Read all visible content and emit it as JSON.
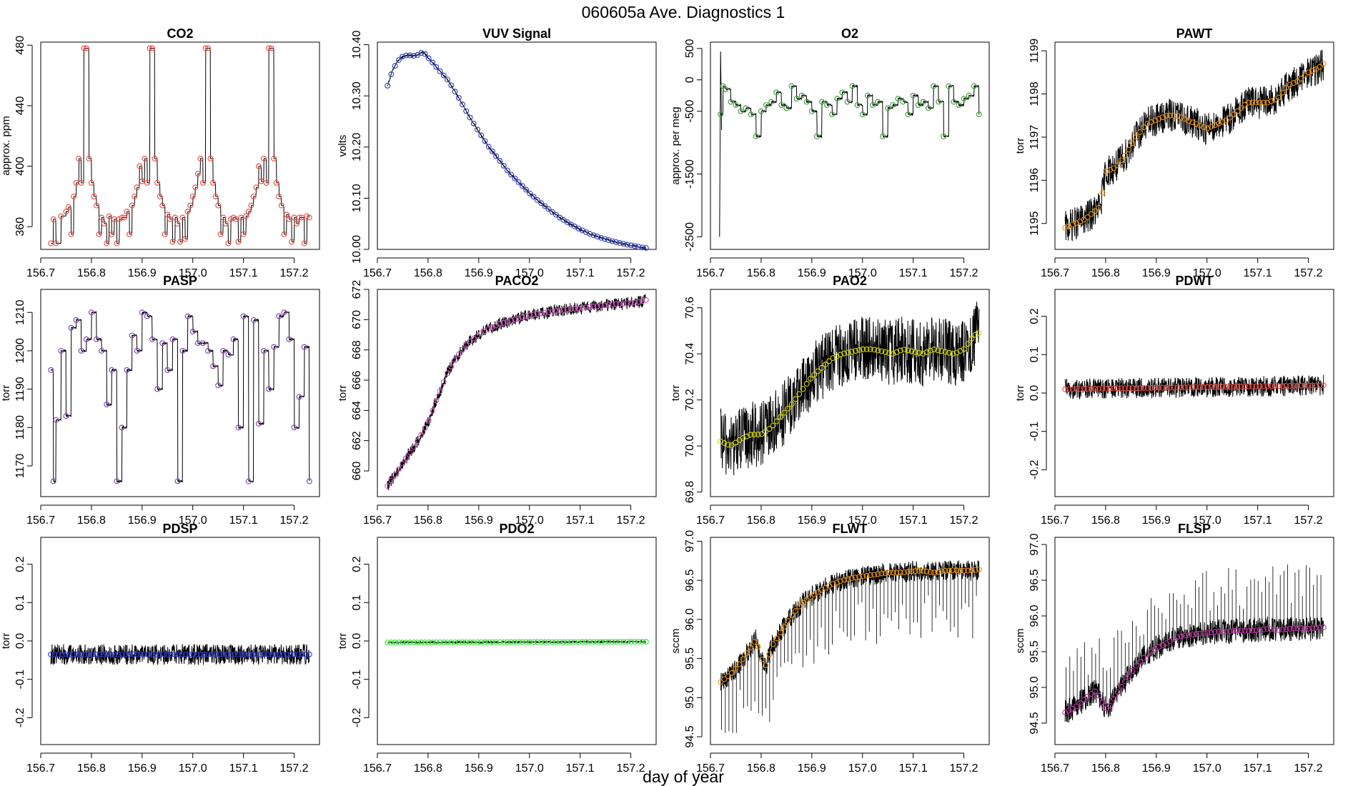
{
  "figure": {
    "title": "060605a   Ave. Diagnostics 1",
    "xlabel": "day of year"
  },
  "chart_data": [
    {
      "type": "line",
      "title": "CO2",
      "ylabel": "approx. ppm",
      "color": "#e8473f",
      "xlim": [
        156.7,
        157.25
      ],
      "ylim": [
        345,
        482
      ],
      "yticks": [
        360,
        400,
        440,
        480
      ],
      "xticks": [
        156.7,
        156.8,
        156.9,
        157.0,
        157.1,
        157.2
      ],
      "x": [
        156.72,
        156.725,
        156.73,
        156.74,
        156.75,
        156.755,
        156.76,
        156.765,
        156.77,
        156.775,
        156.78,
        156.785,
        156.79,
        156.795,
        156.8,
        156.805,
        156.81,
        156.815,
        156.82,
        156.825,
        156.83,
        156.835,
        156.84,
        156.845,
        156.85,
        156.855,
        156.86,
        156.865,
        156.87,
        156.875,
        156.88,
        156.885,
        156.89,
        156.895,
        156.9,
        156.905,
        156.91,
        156.915,
        156.92,
        156.925,
        156.93,
        156.935,
        156.94,
        156.945,
        156.95,
        156.955,
        156.96,
        156.965,
        156.97,
        156.975,
        156.98,
        156.985,
        156.99,
        156.995,
        157.0,
        157.005,
        157.01,
        157.015,
        157.02,
        157.025,
        157.03,
        157.035,
        157.04,
        157.045,
        157.05,
        157.055,
        157.06,
        157.065,
        157.07,
        157.075,
        157.08,
        157.085,
        157.09,
        157.095,
        157.1,
        157.105,
        157.11,
        157.115,
        157.12,
        157.125,
        157.13,
        157.135,
        157.14,
        157.145,
        157.15,
        157.155,
        157.16,
        157.165,
        157.17,
        157.175,
        157.18,
        157.185,
        157.19,
        157.195,
        157.2,
        157.205,
        157.21,
        157.215,
        157.22,
        157.225,
        157.23
      ],
      "values": [
        349,
        365,
        349,
        367,
        370,
        373,
        355,
        380,
        389,
        405,
        389,
        478,
        478,
        405,
        389,
        380,
        374,
        355,
        366,
        362,
        349,
        367,
        355,
        365,
        349,
        365,
        366,
        366,
        370,
        355,
        374,
        380,
        386,
        400,
        390,
        405,
        389,
        478,
        478,
        405,
        389,
        380,
        374,
        355,
        368,
        365,
        350,
        366,
        362,
        350,
        366,
        352,
        370,
        374,
        380,
        386,
        395,
        405,
        389,
        478,
        478,
        405,
        389,
        380,
        374,
        355,
        366,
        362,
        349,
        365,
        366,
        365,
        350,
        366,
        355,
        367,
        370,
        374,
        380,
        386,
        400,
        390,
        405,
        389,
        478,
        478,
        405,
        389,
        380,
        374,
        355,
        368,
        365,
        350,
        366,
        362,
        366,
        366,
        349,
        367,
        366
      ]
    },
    {
      "type": "line",
      "title": "VUV Signal",
      "ylabel": "volts",
      "color": "#2a39c4",
      "xlim": [
        156.7,
        157.25
      ],
      "ylim": [
        10.0,
        10.405
      ],
      "yticks": [
        10.0,
        10.1,
        10.2,
        10.3,
        10.4
      ],
      "xticks": [
        156.7,
        156.8,
        156.9,
        157.0,
        157.1,
        157.2
      ],
      "x": [
        156.72,
        156.73,
        156.74,
        156.75,
        156.76,
        156.77,
        156.78,
        156.79,
        156.8,
        156.82,
        156.84,
        156.86,
        156.88,
        156.9,
        156.92,
        156.94,
        156.96,
        156.98,
        157.0,
        157.02,
        157.04,
        157.06,
        157.08,
        157.1,
        157.12,
        157.14,
        157.16,
        157.18,
        157.2,
        157.22,
        157.23
      ],
      "values": [
        10.32,
        10.35,
        10.368,
        10.377,
        10.38,
        10.378,
        10.38,
        10.386,
        10.375,
        10.352,
        10.33,
        10.297,
        10.262,
        10.23,
        10.2,
        10.175,
        10.15,
        10.13,
        10.11,
        10.093,
        10.077,
        10.062,
        10.05,
        10.039,
        10.03,
        10.023,
        10.017,
        10.012,
        10.008,
        10.004,
        10.003
      ]
    },
    {
      "type": "line",
      "title": "O2",
      "ylabel": "approx. per meg",
      "color": "#3a9a3a",
      "xlim": [
        156.7,
        157.25
      ],
      "ylim": [
        -2700,
        600
      ],
      "yticks": [
        -2500,
        -1500,
        -500,
        0,
        500
      ],
      "xticks": [
        156.7,
        156.8,
        156.9,
        157.0,
        157.1,
        157.2
      ],
      "x": [
        156.72,
        156.725,
        156.73,
        156.74,
        156.75,
        156.76,
        156.77,
        156.78,
        156.79,
        156.8,
        156.81,
        156.82,
        156.83,
        156.84,
        156.85,
        156.86,
        156.87,
        156.88,
        156.89,
        156.9,
        156.91,
        156.92,
        156.93,
        156.94,
        156.95,
        156.96,
        156.97,
        156.98,
        156.99,
        157.0,
        157.01,
        157.02,
        157.03,
        157.04,
        157.05,
        157.06,
        157.07,
        157.08,
        157.09,
        157.1,
        157.11,
        157.12,
        157.13,
        157.14,
        157.15,
        157.16,
        157.17,
        157.18,
        157.19,
        157.2,
        157.21,
        157.22,
        157.23
      ],
      "values": [
        -550,
        -100,
        -150,
        -350,
        -400,
        -500,
        -450,
        -550,
        -900,
        -500,
        -400,
        -350,
        -200,
        -400,
        -450,
        -100,
        -300,
        -250,
        -350,
        -500,
        -900,
        -350,
        -400,
        -550,
        -300,
        -200,
        -350,
        -100,
        -400,
        -550,
        -250,
        -400,
        -350,
        -900,
        -450,
        -400,
        -300,
        -350,
        -550,
        -250,
        -400,
        -350,
        -450,
        -100,
        -350,
        -900,
        -100,
        -350,
        -400,
        -300,
        -250,
        -100,
        -550
      ]
    },
    {
      "type": "line",
      "title": "PAWT",
      "ylabel": "torr",
      "color": "#e8900c",
      "xlim": [
        156.7,
        157.25
      ],
      "ylim": [
        1194.4,
        1199.2
      ],
      "yticks": [
        1195,
        1196,
        1197,
        1198,
        1199
      ],
      "xticks": [
        156.7,
        156.8,
        156.9,
        157.0,
        157.1,
        157.2
      ],
      "x": [
        156.72,
        156.74,
        156.76,
        156.78,
        156.79,
        156.8,
        156.82,
        156.84,
        156.86,
        156.88,
        156.9,
        156.92,
        156.94,
        156.96,
        156.98,
        157.0,
        157.02,
        157.04,
        157.06,
        157.08,
        157.1,
        157.12,
        157.14,
        157.16,
        157.18,
        157.2,
        157.22,
        157.23
      ],
      "values": [
        1194.9,
        1195.0,
        1195.1,
        1195.3,
        1195.4,
        1196.2,
        1196.3,
        1196.6,
        1197.0,
        1197.3,
        1197.4,
        1197.5,
        1197.5,
        1197.4,
        1197.3,
        1197.2,
        1197.3,
        1197.4,
        1197.6,
        1197.8,
        1197.8,
        1197.8,
        1197.9,
        1198.2,
        1198.3,
        1198.5,
        1198.6,
        1198.7
      ]
    },
    {
      "type": "line",
      "title": "PASP",
      "ylabel": "torr",
      "color": "#7b3fb5",
      "xlim": [
        156.7,
        157.25
      ],
      "ylim": [
        1162,
        1216
      ],
      "yticks": [
        1170,
        1180,
        1190,
        1200,
        1210
      ],
      "xticks": [
        156.7,
        156.8,
        156.9,
        157.0,
        157.1,
        157.2
      ],
      "x": [
        156.72,
        156.725,
        156.73,
        156.74,
        156.75,
        156.76,
        156.77,
        156.78,
        156.79,
        156.8,
        156.81,
        156.82,
        156.83,
        156.84,
        156.85,
        156.86,
        156.87,
        156.88,
        156.89,
        156.9,
        156.91,
        156.92,
        156.93,
        156.94,
        156.95,
        156.96,
        156.97,
        156.98,
        156.99,
        157.0,
        157.01,
        157.02,
        157.03,
        157.04,
        157.05,
        157.06,
        157.07,
        157.08,
        157.09,
        157.1,
        157.11,
        157.12,
        157.13,
        157.14,
        157.15,
        157.16,
        157.17,
        157.18,
        157.19,
        157.2,
        157.21,
        157.22,
        157.23
      ],
      "values": [
        1195,
        1166,
        1182,
        1200,
        1183,
        1206,
        1208,
        1200,
        1203,
        1210,
        1203,
        1200,
        1186,
        1195,
        1166,
        1180,
        1195,
        1204,
        1200,
        1210,
        1209,
        1203,
        1190,
        1202,
        1195,
        1203,
        1166,
        1200,
        1209,
        1205,
        1202,
        1202,
        1200,
        1196,
        1191,
        1200,
        1199,
        1203,
        1180,
        1209,
        1166,
        1208,
        1181,
        1200,
        1190,
        1201,
        1209,
        1210,
        1203,
        1180,
        1188,
        1201,
        1166
      ]
    },
    {
      "type": "line",
      "title": "PACO2",
      "ylabel": "torr",
      "color": "#c95bbd",
      "xlim": [
        156.7,
        157.25
      ],
      "ylim": [
        658.3,
        672
      ],
      "yticks": [
        660,
        662,
        664,
        666,
        668,
        670,
        672
      ],
      "xticks": [
        156.7,
        156.8,
        156.9,
        157.0,
        157.1,
        157.2
      ],
      "x": [
        156.72,
        156.74,
        156.76,
        156.78,
        156.8,
        156.82,
        156.84,
        156.86,
        156.88,
        156.9,
        156.92,
        156.94,
        156.96,
        156.98,
        157.0,
        157.02,
        157.04,
        157.06,
        157.08,
        157.1,
        157.12,
        157.14,
        157.16,
        157.18,
        157.2,
        157.22,
        157.23
      ],
      "values": [
        659.0,
        660.0,
        661.0,
        662.0,
        663.2,
        665.0,
        666.6,
        667.7,
        668.5,
        669.0,
        669.4,
        669.7,
        669.9,
        670.1,
        670.3,
        670.4,
        670.5,
        670.6,
        670.7,
        670.75,
        670.85,
        670.9,
        671.0,
        671.05,
        671.1,
        671.2,
        671.3
      ]
    },
    {
      "type": "line",
      "title": "PAO2",
      "ylabel": "torr",
      "color": "#d4d400",
      "xlim": [
        156.7,
        157.25
      ],
      "ylim": [
        69.78,
        70.68
      ],
      "yticks": [
        69.8,
        70.0,
        70.2,
        70.4,
        70.6
      ],
      "xticks": [
        156.7,
        156.8,
        156.9,
        157.0,
        157.1,
        157.2
      ],
      "x": [
        156.72,
        156.74,
        156.76,
        156.78,
        156.8,
        156.82,
        156.84,
        156.86,
        156.88,
        156.9,
        156.92,
        156.94,
        156.96,
        156.98,
        157.0,
        157.02,
        157.04,
        157.06,
        157.08,
        157.1,
        157.12,
        157.14,
        157.16,
        157.18,
        157.2,
        157.22,
        157.23
      ],
      "values": [
        70.02,
        70.0,
        70.03,
        70.05,
        70.05,
        70.08,
        70.13,
        70.18,
        70.24,
        70.3,
        70.34,
        70.38,
        70.4,
        70.41,
        70.42,
        70.42,
        70.41,
        70.4,
        70.42,
        70.41,
        70.4,
        70.42,
        70.41,
        70.4,
        70.42,
        70.48,
        70.49
      ]
    },
    {
      "type": "line",
      "title": "PDWT",
      "ylabel": "torr",
      "color": "#e8473f",
      "xlim": [
        156.7,
        157.25
      ],
      "ylim": [
        -0.27,
        0.27
      ],
      "yticks": [
        -0.2,
        -0.1,
        0.0,
        0.1,
        0.2
      ],
      "xticks": [
        156.7,
        156.8,
        156.9,
        157.0,
        157.1,
        157.2
      ],
      "x": [
        156.72,
        157.23
      ],
      "values": [
        0.01,
        0.02
      ]
    },
    {
      "type": "line",
      "title": "PDSP",
      "ylabel": "torr",
      "color": "#2a39c4",
      "xlim": [
        156.7,
        157.25
      ],
      "ylim": [
        -0.27,
        0.27
      ],
      "yticks": [
        -0.2,
        -0.1,
        0.0,
        0.1,
        0.2
      ],
      "xticks": [
        156.7,
        156.8,
        156.9,
        157.0,
        157.1,
        157.2
      ],
      "x": [
        156.72,
        157.23
      ],
      "values": [
        -0.035,
        -0.035
      ]
    },
    {
      "type": "line",
      "title": "PDO2",
      "ylabel": "torr",
      "color": "#39e639",
      "xlim": [
        156.7,
        157.25
      ],
      "ylim": [
        -0.27,
        0.27
      ],
      "yticks": [
        -0.2,
        -0.1,
        0.0,
        0.1,
        0.2
      ],
      "xticks": [
        156.7,
        156.8,
        156.9,
        157.0,
        157.1,
        157.2
      ],
      "x": [
        156.72,
        157.23
      ],
      "values": [
        -0.004,
        -0.002
      ]
    },
    {
      "type": "line",
      "title": "FLWT",
      "ylabel": "sccm",
      "color": "#e8900c",
      "xlim": [
        156.7,
        157.25
      ],
      "ylim": [
        94.4,
        97.05
      ],
      "yticks": [
        94.5,
        95.0,
        95.5,
        96.0,
        96.5,
        97.0
      ],
      "xticks": [
        156.7,
        156.8,
        156.9,
        157.0,
        157.1,
        157.2
      ],
      "x": [
        156.72,
        156.74,
        156.76,
        156.78,
        156.79,
        156.8,
        156.81,
        156.82,
        156.84,
        156.86,
        156.88,
        156.9,
        156.92,
        156.94,
        156.96,
        156.98,
        157.0,
        157.02,
        157.04,
        157.06,
        157.08,
        157.1,
        157.12,
        157.14,
        157.16,
        157.18,
        157.2,
        157.22,
        157.23
      ],
      "values": [
        95.2,
        95.3,
        95.45,
        95.65,
        95.75,
        95.5,
        95.4,
        95.65,
        95.85,
        96.05,
        96.2,
        96.3,
        96.38,
        96.45,
        96.5,
        96.53,
        96.55,
        96.57,
        96.59,
        96.6,
        96.6,
        96.62,
        96.62,
        96.6,
        96.62,
        96.63,
        96.62,
        96.63,
        96.64
      ]
    },
    {
      "type": "line",
      "title": "FLSP",
      "ylabel": "sccm",
      "color": "#b5359e",
      "xlim": [
        156.7,
        157.25
      ],
      "ylim": [
        94.2,
        97.1
      ],
      "yticks": [
        94.5,
        95.0,
        95.5,
        96.0,
        96.5,
        97.0
      ],
      "xticks": [
        156.7,
        156.8,
        156.9,
        157.0,
        157.1,
        157.2
      ],
      "x": [
        156.72,
        156.74,
        156.76,
        156.78,
        156.79,
        156.8,
        156.81,
        156.82,
        156.84,
        156.86,
        156.88,
        156.9,
        156.92,
        156.94,
        156.96,
        156.98,
        157.0,
        157.02,
        157.04,
        157.06,
        157.08,
        157.1,
        157.12,
        157.14,
        157.16,
        157.18,
        157.2,
        157.22,
        157.23
      ],
      "values": [
        94.65,
        94.72,
        94.85,
        94.95,
        94.85,
        94.7,
        94.75,
        94.9,
        95.1,
        95.3,
        95.45,
        95.55,
        95.62,
        95.7,
        95.73,
        95.75,
        95.76,
        95.78,
        95.78,
        95.8,
        95.79,
        95.8,
        95.82,
        95.8,
        95.82,
        95.83,
        95.82,
        95.84,
        95.84
      ]
    }
  ]
}
